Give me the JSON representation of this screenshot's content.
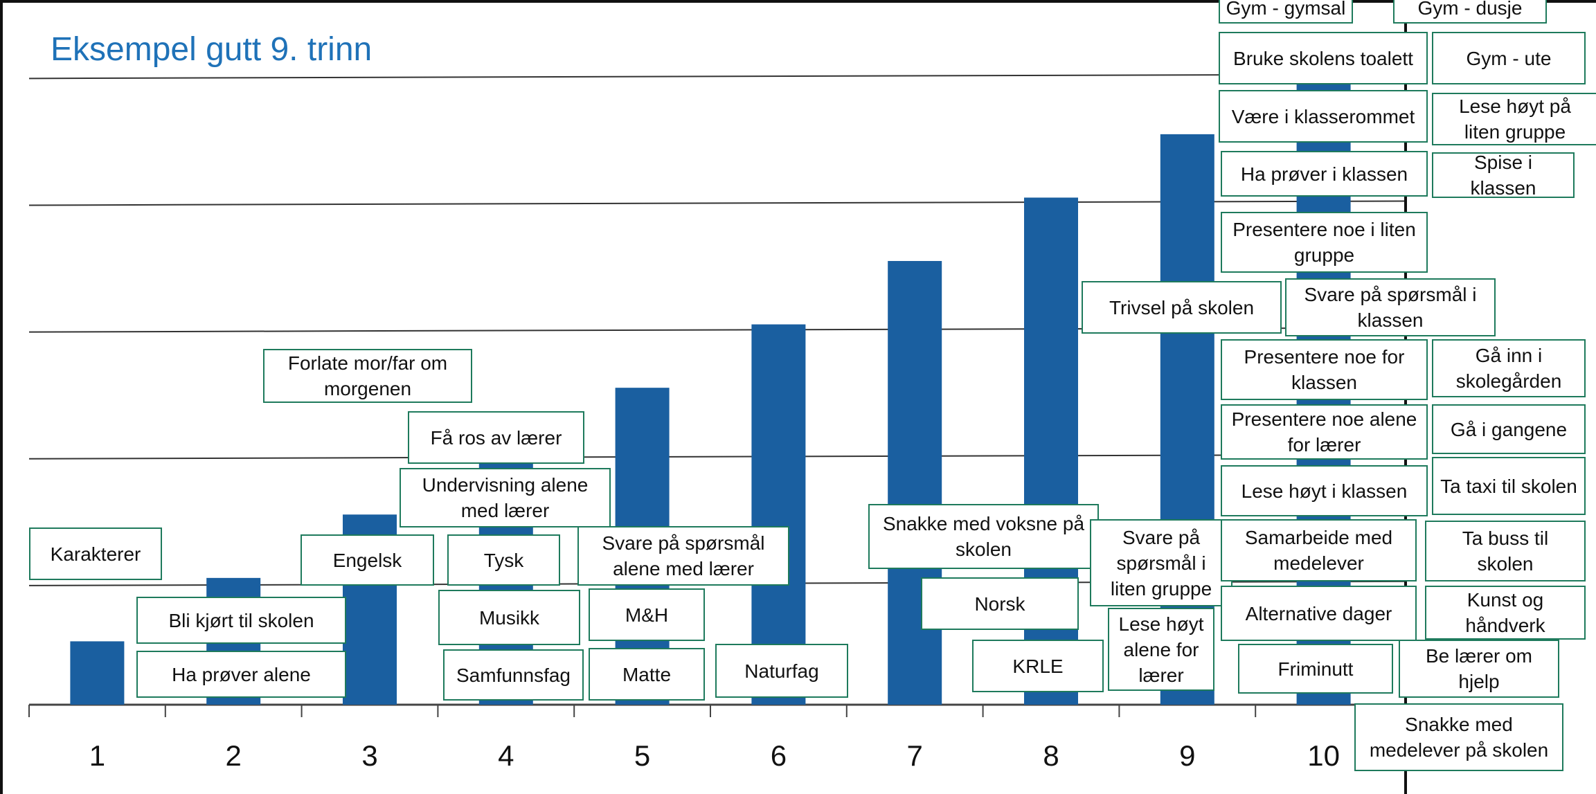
{
  "title": "Eksempel gutt 9. trinn",
  "colors": {
    "bar": "#1a5fa0",
    "title": "#1f72b8",
    "box_border": "#1e7a5c",
    "grid": "#333333"
  },
  "chart_data": {
    "type": "bar",
    "title": "Eksempel gutt 9. trinn",
    "categories": [
      "1",
      "2",
      "3",
      "4",
      "5",
      "6",
      "7",
      "8",
      "9",
      "10"
    ],
    "values": [
      1,
      2,
      3,
      4,
      5,
      6,
      7,
      8,
      9,
      10
    ],
    "ylim": [
      0,
      10.2
    ],
    "grid": true,
    "xlabel": "",
    "ylabel": ""
  },
  "labels": [
    "Gym - gymsal",
    "Gym - dusje",
    "Bruke skolens toalett",
    "Gym - ute",
    "Være i klasserommet",
    "Lese høyt på liten gruppe",
    "Ha prøver i klassen",
    "Spise i klassen",
    "Presentere noe i liten gruppe",
    "Trivsel på skolen",
    "Svare på spørsmål i klassen",
    "Forlate mor/far om morgenen",
    "Presentere noe for klassen",
    "Gå inn i skolegården",
    "Få ros av lærer",
    "Presentere noe alene for lærer",
    "Gå i gangene",
    "Undervisning alene med lærer",
    "Lese høyt i klassen",
    "Ta taxi til skolen",
    "Snakke med voksne på skolen",
    "Svare på spørsmål i liten gruppe",
    "Samarbeide med medelever",
    "Ta buss til skolen",
    "Karakterer",
    "Engelsk",
    "Tysk",
    "Svare på spørsmål alene med lærer",
    "Kunst og håndverk",
    "Norsk",
    "Bli kjørt til skolen",
    "Musikk",
    "M&H",
    "Alternative dager",
    "Lese høyt alene for lærer",
    "Be lærer om hjelp",
    "Ha prøver alene",
    "Samfunnsfag",
    "Matte",
    "Naturfag",
    "KRLE",
    "Friminutt",
    "Snakke med medelever på skolen"
  ]
}
